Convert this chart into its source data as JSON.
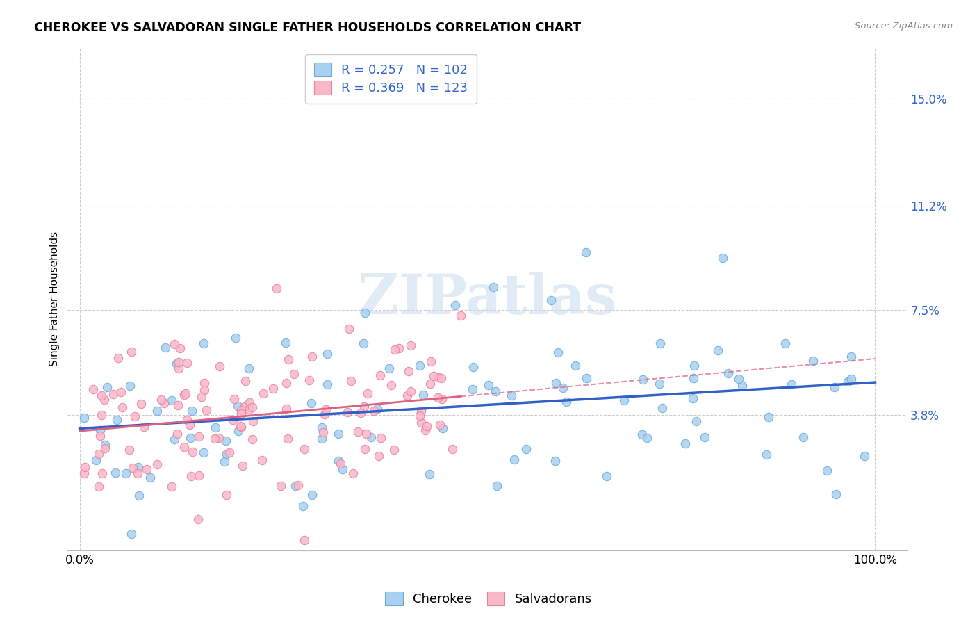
{
  "title": "CHEROKEE VS SALVADORAN SINGLE FATHER HOUSEHOLDS CORRELATION CHART",
  "source": "Source: ZipAtlas.com",
  "ylabel": "Single Father Households",
  "x_tick_labels": [
    "0.0%",
    "100.0%"
  ],
  "y_tick_labels": [
    "3.8%",
    "7.5%",
    "11.2%",
    "15.0%"
  ],
  "y_tick_values": [
    0.038,
    0.075,
    0.112,
    0.15
  ],
  "cherokee_color": "#A8D0F0",
  "cherokee_edge_color": "#6AAAD8",
  "salvadoran_color": "#F8B8C8",
  "salvadoran_edge_color": "#E880A0",
  "cherokee_line_color": "#3060C8",
  "salvadoran_line_color": "#E06080",
  "legend_text_color": "#3366CC",
  "watermark_color": "#C8DCF0",
  "background_color": "#FFFFFF",
  "grid_color": "#CCCCCC",
  "cherokee_R": 0.257,
  "cherokee_N": 102,
  "salvadoran_R": 0.369,
  "salvadoran_N": 123
}
